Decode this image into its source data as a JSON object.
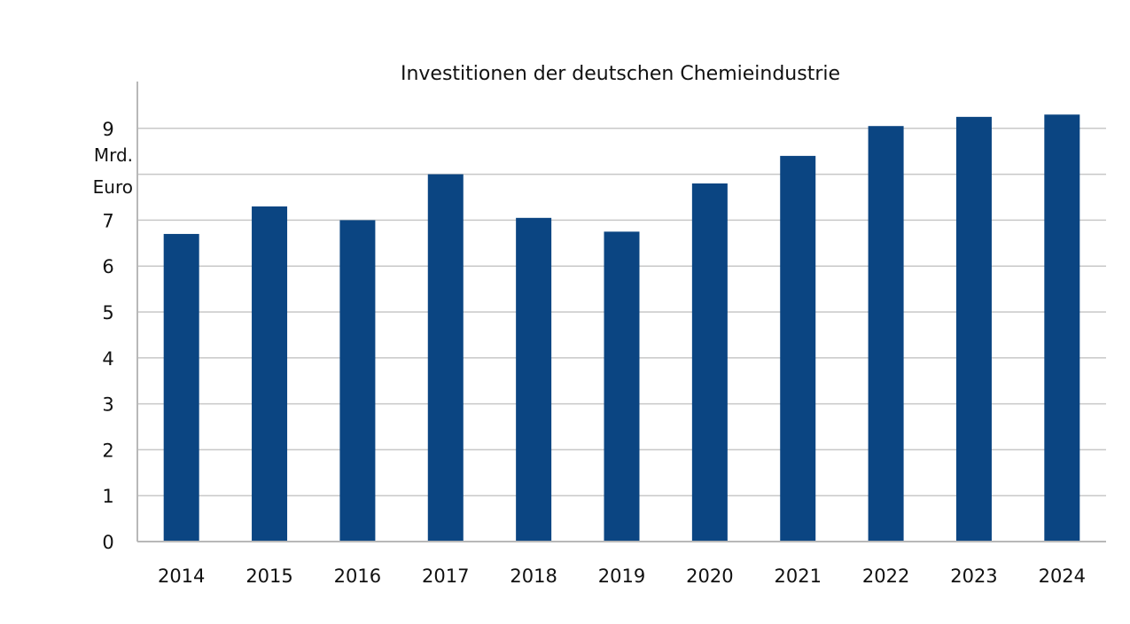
{
  "chart_data": {
    "type": "bar",
    "title": "Investitionen der deutschen Chemieindustrie",
    "unit_label": [
      "Mrd.",
      "Euro"
    ],
    "categories": [
      "2014",
      "2015",
      "2016",
      "2017",
      "2018",
      "2019",
      "2020",
      "2021",
      "2022",
      "2023",
      "2024"
    ],
    "values": [
      6.7,
      7.3,
      7.0,
      8.0,
      7.05,
      6.75,
      7.8,
      8.4,
      9.05,
      9.25,
      9.3
    ],
    "ylim": [
      0,
      10
    ],
    "ytick_labels": [
      "0",
      "1",
      "2",
      "3",
      "4",
      "5",
      "6",
      "7",
      "9"
    ],
    "ytick_values": [
      0,
      1,
      2,
      3,
      4,
      5,
      6,
      7,
      9
    ],
    "gridlines": [
      1,
      2,
      3,
      4,
      5,
      6,
      7,
      8,
      9
    ],
    "grid": true,
    "bar_color": "#0b4582",
    "grid_color": "#c8c8c8"
  }
}
